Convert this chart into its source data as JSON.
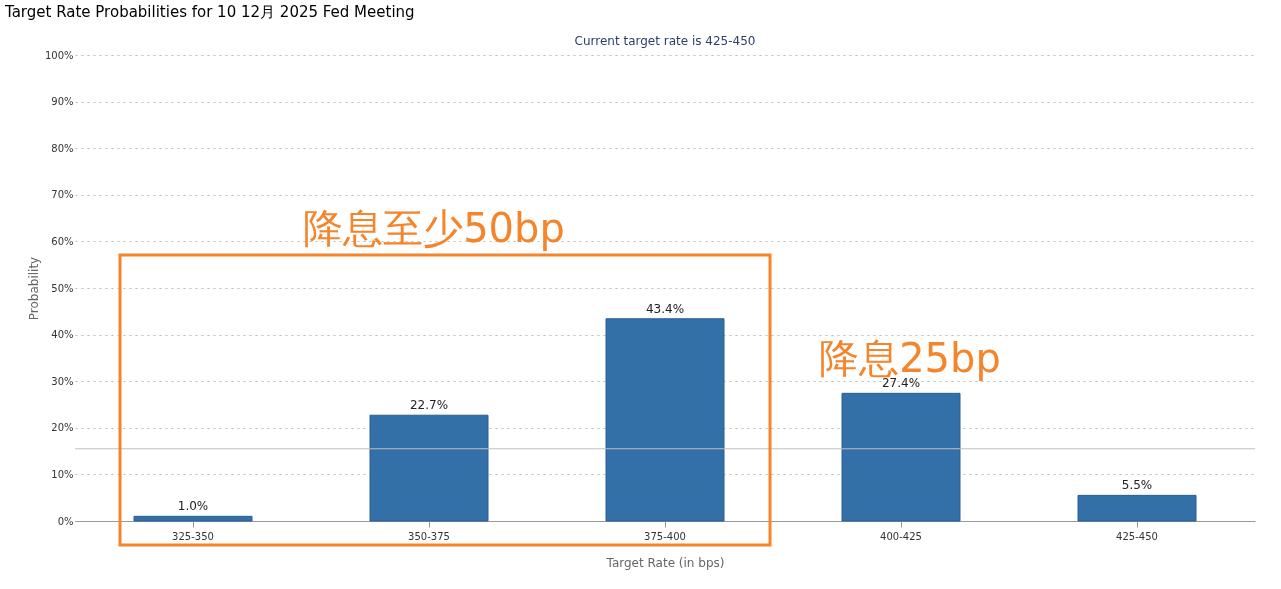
{
  "chart_data": {
    "type": "bar",
    "title": "Target Rate Probabilities for 10 12月 2025 Fed Meeting",
    "subtitle": "Current target rate is 425-450",
    "xlabel": "Target Rate (in bps)",
    "ylabel": "Probability",
    "categories": [
      "325-350",
      "350-375",
      "375-400",
      "400-425",
      "425-450"
    ],
    "values": [
      1.0,
      22.7,
      43.4,
      27.4,
      5.5
    ],
    "value_labels": [
      "1.0%",
      "22.7%",
      "43.4%",
      "27.4%",
      "5.5%"
    ],
    "color": "#3370a8",
    "ylim": [
      0,
      100
    ],
    "yticks": [
      {
        "value": 0,
        "label": "0%"
      },
      {
        "value": 10,
        "label": "10%"
      },
      {
        "value": 20,
        "label": "20%"
      },
      {
        "value": 30,
        "label": "30%"
      },
      {
        "value": 40,
        "label": "40%"
      },
      {
        "value": 50,
        "label": "50%"
      },
      {
        "value": 60,
        "label": "60%"
      },
      {
        "value": 70,
        "label": "70%"
      },
      {
        "value": 80,
        "label": "80%"
      },
      {
        "value": 90,
        "label": "90%"
      },
      {
        "value": 100,
        "label": "100%"
      }
    ],
    "grid": "y",
    "ref_lines": [
      {
        "axis": "y",
        "value": 15.5,
        "color": "#c0c0c0"
      }
    ],
    "annotations": [
      "降息至少50bp",
      "降息25bp"
    ]
  }
}
